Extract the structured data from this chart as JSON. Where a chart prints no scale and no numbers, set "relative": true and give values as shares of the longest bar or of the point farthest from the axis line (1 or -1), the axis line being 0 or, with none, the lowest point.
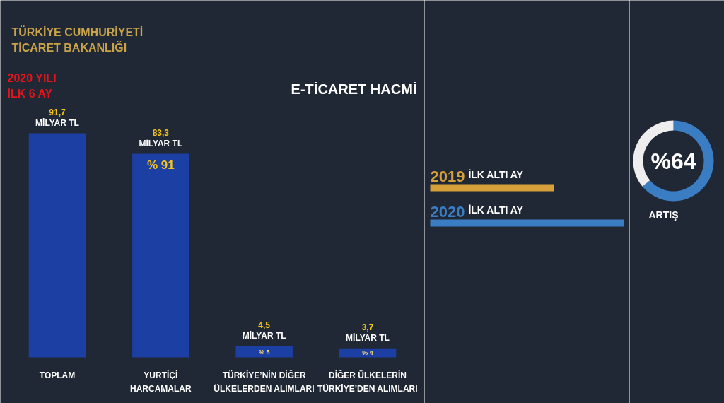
{
  "chart_data": [
    {
      "type": "bar",
      "title": "E-TİCARET HACMİ",
      "subtitle": "2020 YILI\nİLK 6 AY",
      "categories": [
        "TOPLAM",
        "YURTİÇİ\nHARCAMALAR",
        "TÜRKİYE’NİN DİĞER\nÜLKELERDEN ALIMLARI",
        "DİĞER ÜLKELERİN\nTÜRKİYE’DEN ALIMLARI"
      ],
      "values": [
        91.7,
        83.3,
        4.5,
        3.7
      ],
      "color": "#1c3fa3",
      "value_labels": [
        "91,7\nMİLYAR TL",
        "83,3\nMİLYAR TL",
        "4,5\nMİLYAR TL",
        "3,7\nMİLYAR TL"
      ],
      "annotations": [
        "TÜRKİYE CUMHURİYETİ\nTİCARET BAKANLIĞI",
        {
          "text": "% 91",
          "x": "YURTİÇİ\nHARCAMALAR",
          "y": 83.3
        },
        {
          "text": "% 5",
          "x": "TÜRKİYE’NİN DİĞER\nÜLKELERDEN ALIMLARI",
          "y": 4.5
        },
        {
          "text": "% 4",
          "x": "DİĞER ÜLKELERİN\nTÜRKİYE’DEN ALIMLARI",
          "y": 3.7
        }
      ]
    },
    {
      "type": "bar",
      "orientation": "horizontal",
      "relative": true,
      "categories": [
        "2019 İLK ALTI AY",
        "2020 İLK ALTI AY"
      ],
      "values": [
        0.64,
        1
      ],
      "colors": [
        "#d6a13a",
        "#3b7dc3"
      ]
    },
    {
      "type": "donut",
      "categories": [
        null,
        null
      ],
      "values": [
        64,
        36
      ],
      "colors": [
        "#3b7dc3",
        "#eeeeee"
      ],
      "annotations": [
        "%64",
        "ARTIŞ"
      ]
    }
  ]
}
